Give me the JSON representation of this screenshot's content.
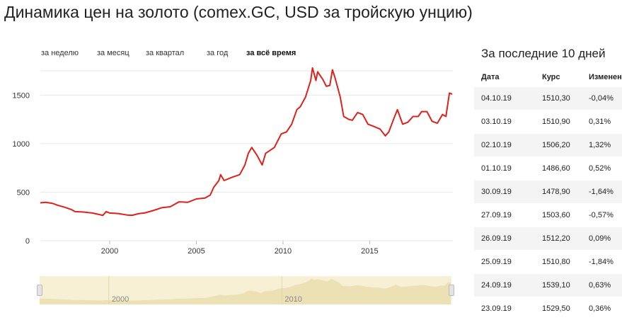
{
  "page": {
    "title": "Динамика цен на золото (comex.GC, USD за тройскую унцию)"
  },
  "periods": [
    {
      "label": "за неделю",
      "active": false
    },
    {
      "label": "за месяц",
      "active": false
    },
    {
      "label": "за квартал",
      "active": false
    },
    {
      "label": "за год",
      "active": false
    },
    {
      "label": "за всё время",
      "active": true
    }
  ],
  "colors": {
    "line": "#e0201b",
    "grid": "#e6e6e6",
    "navigator_bg": "#f7f0d4",
    "navigator_area": "#ece1b5"
  },
  "chart_data": {
    "type": "line",
    "title": "Динамика цен на золото (comex.GC, USD за тройскую унцию)",
    "xlabel": "",
    "ylabel": "",
    "x_range": [
      1996.0,
      2019.8
    ],
    "ylim": [
      0,
      1750
    ],
    "y_ticks": [
      0,
      500,
      1000,
      1500
    ],
    "x_ticks": [
      2000,
      2005,
      2010,
      2015
    ],
    "grid": true,
    "series": [
      {
        "name": "",
        "points": [
          [
            1996.0,
            390
          ],
          [
            1996.3,
            395
          ],
          [
            1996.7,
            385
          ],
          [
            1997.0,
            365
          ],
          [
            1997.4,
            345
          ],
          [
            1997.8,
            320
          ],
          [
            1998.0,
            300
          ],
          [
            1998.5,
            295
          ],
          [
            1999.0,
            285
          ],
          [
            1999.4,
            270
          ],
          [
            1999.6,
            260
          ],
          [
            1999.8,
            300
          ],
          [
            2000.0,
            285
          ],
          [
            2000.5,
            280
          ],
          [
            2001.0,
            265
          ],
          [
            2001.3,
            262
          ],
          [
            2001.7,
            280
          ],
          [
            2002.0,
            285
          ],
          [
            2002.5,
            310
          ],
          [
            2003.0,
            340
          ],
          [
            2003.5,
            350
          ],
          [
            2004.0,
            400
          ],
          [
            2004.5,
            395
          ],
          [
            2005.0,
            430
          ],
          [
            2005.5,
            440
          ],
          [
            2005.8,
            470
          ],
          [
            2006.0,
            550
          ],
          [
            2006.3,
            620
          ],
          [
            2006.4,
            680
          ],
          [
            2006.6,
            620
          ],
          [
            2007.0,
            650
          ],
          [
            2007.5,
            680
          ],
          [
            2007.8,
            780
          ],
          [
            2008.0,
            900
          ],
          [
            2008.2,
            960
          ],
          [
            2008.5,
            880
          ],
          [
            2008.8,
            780
          ],
          [
            2009.0,
            900
          ],
          [
            2009.5,
            960
          ],
          [
            2009.9,
            1100
          ],
          [
            2010.2,
            1120
          ],
          [
            2010.5,
            1200
          ],
          [
            2010.8,
            1350
          ],
          [
            2011.0,
            1380
          ],
          [
            2011.3,
            1480
          ],
          [
            2011.6,
            1650
          ],
          [
            2011.7,
            1780
          ],
          [
            2011.9,
            1650
          ],
          [
            2012.0,
            1740
          ],
          [
            2012.3,
            1660
          ],
          [
            2012.5,
            1590
          ],
          [
            2012.7,
            1600
          ],
          [
            2012.85,
            1760
          ],
          [
            2013.0,
            1680
          ],
          [
            2013.3,
            1480
          ],
          [
            2013.5,
            1280
          ],
          [
            2013.8,
            1250
          ],
          [
            2014.0,
            1240
          ],
          [
            2014.3,
            1320
          ],
          [
            2014.6,
            1300
          ],
          [
            2014.9,
            1200
          ],
          [
            2015.2,
            1180
          ],
          [
            2015.6,
            1150
          ],
          [
            2015.9,
            1080
          ],
          [
            2016.1,
            1120
          ],
          [
            2016.4,
            1260
          ],
          [
            2016.6,
            1350
          ],
          [
            2016.9,
            1200
          ],
          [
            2017.2,
            1220
          ],
          [
            2017.5,
            1280
          ],
          [
            2017.8,
            1280
          ],
          [
            2018.0,
            1330
          ],
          [
            2018.3,
            1330
          ],
          [
            2018.6,
            1230
          ],
          [
            2018.9,
            1210
          ],
          [
            2019.2,
            1300
          ],
          [
            2019.4,
            1280
          ],
          [
            2019.6,
            1520
          ],
          [
            2019.76,
            1510
          ]
        ]
      }
    ],
    "navigator": {
      "x_range": [
        1996.0,
        2019.8
      ],
      "x_ticks": [
        2000,
        2010
      ]
    }
  },
  "side_panel": {
    "title": "За последние 10 дней",
    "columns": [
      "Дата",
      "Курс",
      "Изменение"
    ],
    "rows": [
      {
        "date": "04.10.19",
        "rate": "1510,30",
        "change": "-0,04%"
      },
      {
        "date": "03.10.19",
        "rate": "1510,90",
        "change": "0,31%"
      },
      {
        "date": "02.10.19",
        "rate": "1506,20",
        "change": "1,32%"
      },
      {
        "date": "01.10.19",
        "rate": "1486,60",
        "change": "0,52%"
      },
      {
        "date": "30.09.19",
        "rate": "1478,90",
        "change": "-1,64%"
      },
      {
        "date": "27.09.19",
        "rate": "1503,60",
        "change": "-0,57%"
      },
      {
        "date": "26.09.19",
        "rate": "1512,20",
        "change": "0,09%"
      },
      {
        "date": "25.09.19",
        "rate": "1510,80",
        "change": "-1,84%"
      },
      {
        "date": "24.09.19",
        "rate": "1539,10",
        "change": "0,63%"
      },
      {
        "date": "23.09.19",
        "rate": "1529,50",
        "change": "0,36%"
      }
    ]
  }
}
